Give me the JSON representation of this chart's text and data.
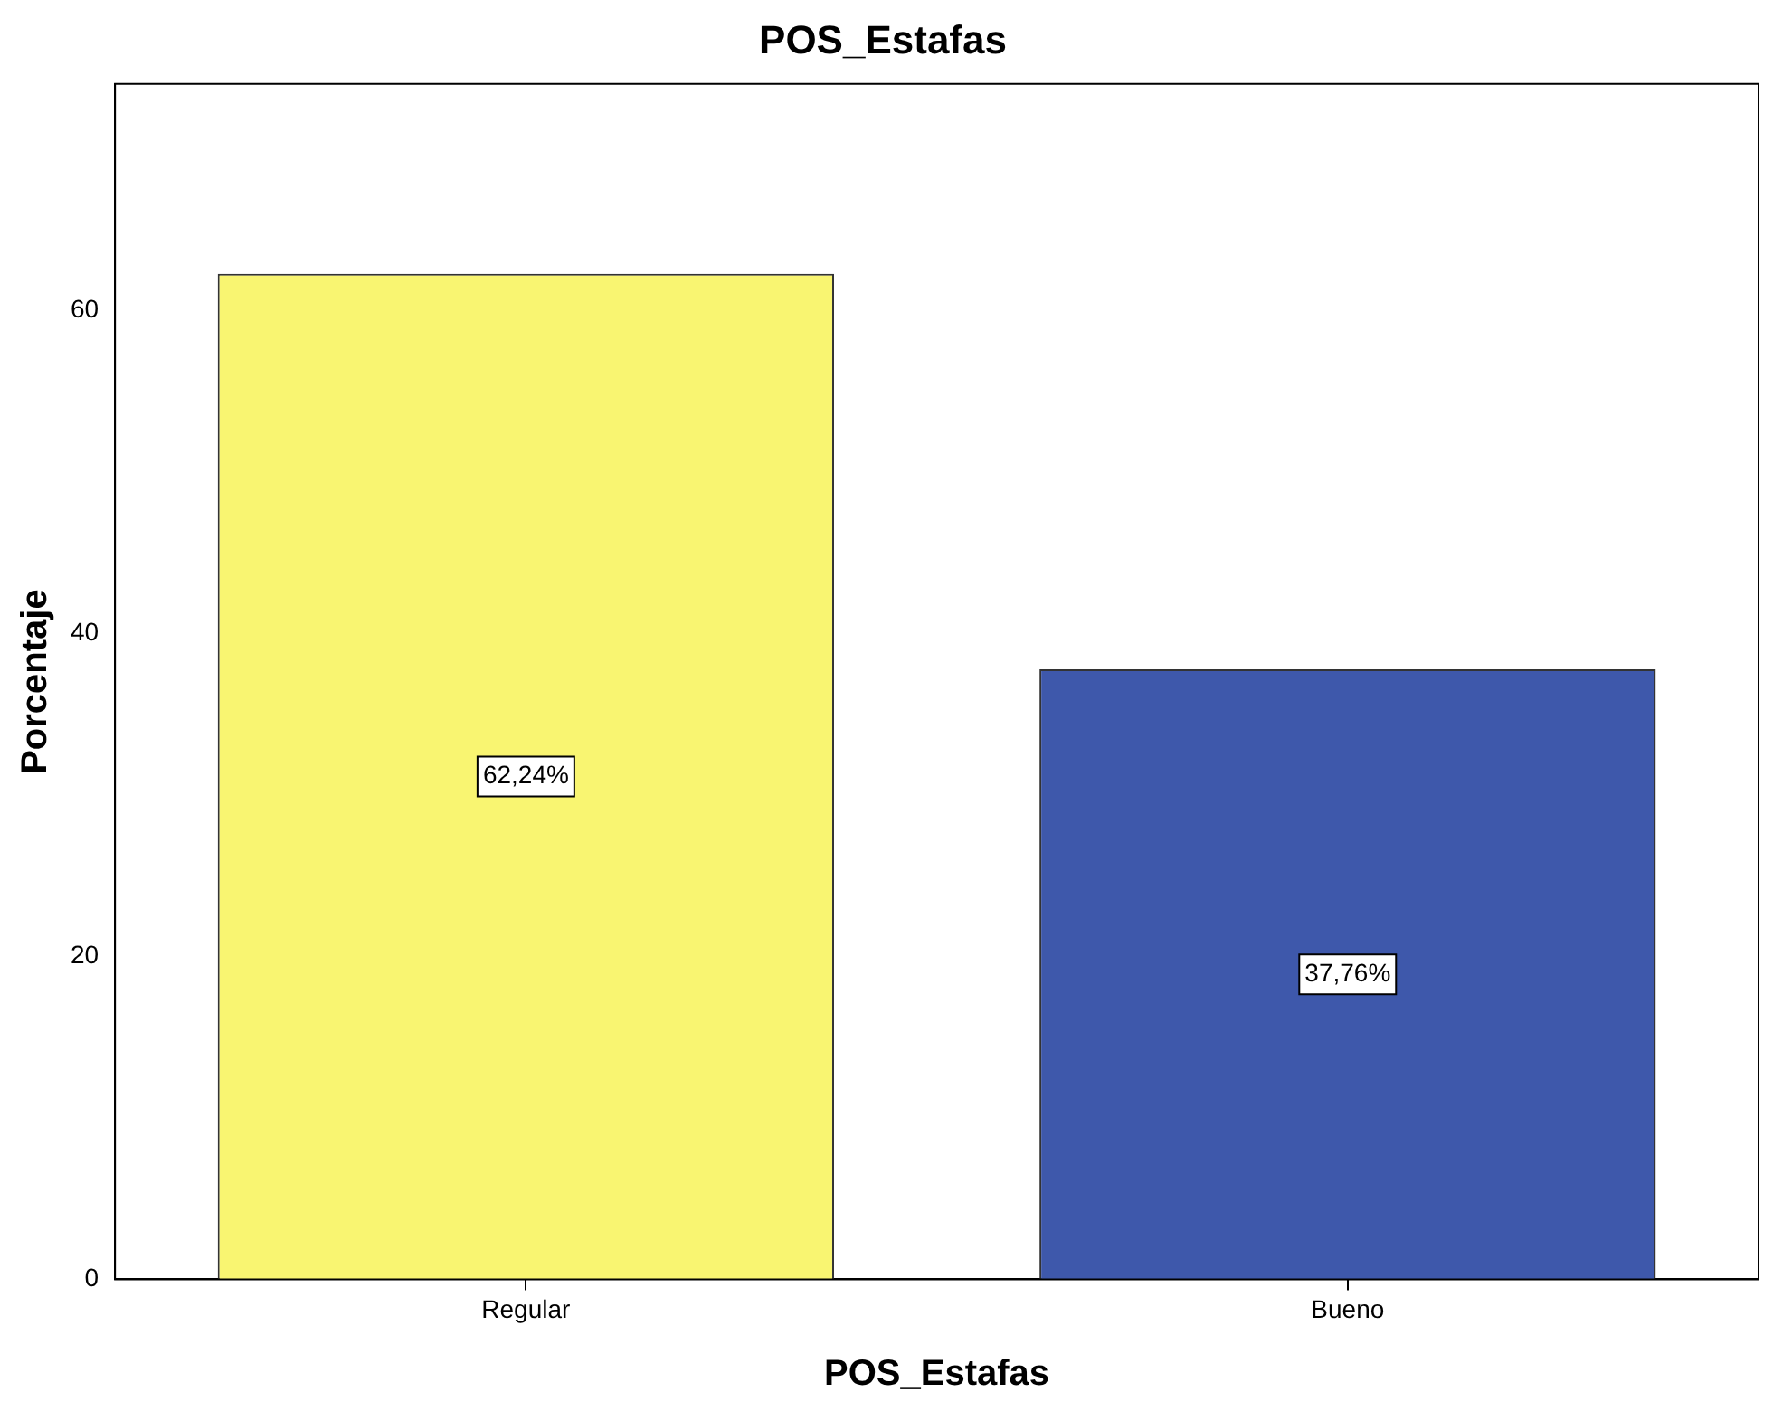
{
  "chart_data": {
    "type": "bar",
    "title": "POS_Estafas",
    "xlabel": "POS_Estafas",
    "ylabel": "Porcentaje",
    "categories": [
      "Regular",
      "Bueno"
    ],
    "values": [
      62.24,
      37.76
    ],
    "colors": [
      "#f9f571",
      "#3e58ab"
    ],
    "value_labels": [
      "62,24%",
      "37,76%"
    ],
    "ylim": [
      0,
      74
    ],
    "yticks": [
      0,
      20,
      40,
      60
    ],
    "grid": false,
    "legend": false
  }
}
